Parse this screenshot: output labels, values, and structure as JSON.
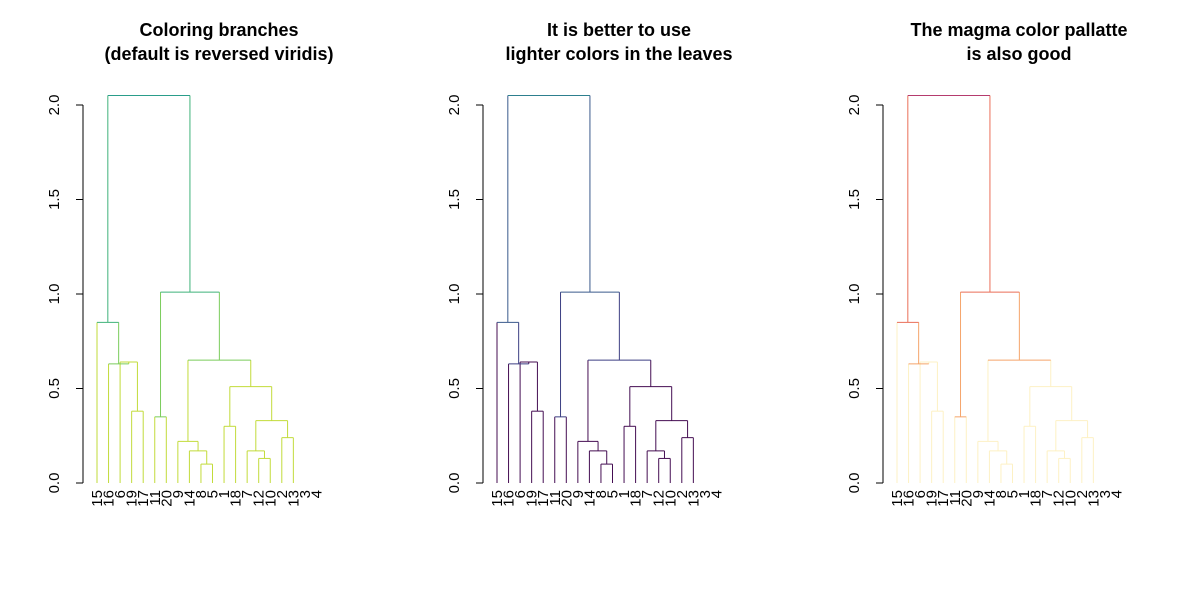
{
  "chart_data": [
    {
      "type": "dendrogram",
      "title_lines": [
        "Coloring branches",
        "(default is reversed viridis)"
      ],
      "palette": "reversed viridis",
      "ylim": [
        0,
        2
      ],
      "y_ticks": [
        "0.0",
        "0.5",
        "1.0",
        "1.5",
        "2.0"
      ],
      "y_tick_values": [
        0,
        0.5,
        1.0,
        1.5,
        2.0
      ],
      "leaf_labels": [
        "15",
        "16",
        "6",
        "19",
        "17",
        "11",
        "20",
        "9",
        "14",
        "8",
        "5",
        "1",
        "18",
        "7",
        "12",
        "10",
        "2",
        "13",
        "3",
        "4"
      ],
      "merge_heights": [
        0.1,
        0.13,
        0.17,
        0.17,
        0.22,
        0.24,
        0.3,
        0.33,
        0.33,
        0.33,
        0.35,
        0.38,
        0.51,
        0.55,
        0.63,
        0.65,
        0.85,
        1.01,
        2.05
      ],
      "branch_colors": {
        "root": "#2a9d8a",
        "level1": "#3fb27a",
        "level2": "#7acc5b",
        "leaves": "#c2db3a"
      }
    },
    {
      "type": "dendrogram",
      "title_lines": [
        "It is better to use",
        "lighter colors in the leaves"
      ],
      "palette": "viridis",
      "ylim": [
        0,
        2
      ],
      "y_ticks": [
        "0.0",
        "0.5",
        "1.0",
        "1.5",
        "2.0"
      ],
      "y_tick_values": [
        0,
        0.5,
        1.0,
        1.5,
        2.0
      ],
      "leaf_labels": [
        "15",
        "16",
        "6",
        "19",
        "17",
        "11",
        "20",
        "9",
        "14",
        "8",
        "5",
        "1",
        "18",
        "7",
        "12",
        "10",
        "2",
        "13",
        "3",
        "4"
      ],
      "merge_heights": [
        0.1,
        0.13,
        0.17,
        0.17,
        0.22,
        0.24,
        0.3,
        0.33,
        0.33,
        0.33,
        0.35,
        0.38,
        0.51,
        0.55,
        0.63,
        0.65,
        0.85,
        1.01,
        2.05
      ],
      "branch_colors": {
        "root": "#2d7f8e",
        "level1": "#3a5a8c",
        "level2": "#3c3f83",
        "leaves": "#440d52"
      }
    },
    {
      "type": "dendrogram",
      "title_lines": [
        "The magma color pallatte",
        "is also good"
      ],
      "palette": "magma",
      "ylim": [
        0,
        2
      ],
      "y_ticks": [
        "0.0",
        "0.5",
        "1.0",
        "1.5",
        "2.0"
      ],
      "y_tick_values": [
        0,
        0.5,
        1.0,
        1.5,
        2.0
      ],
      "leaf_labels": [
        "15",
        "16",
        "6",
        "19",
        "17",
        "11",
        "20",
        "9",
        "14",
        "8",
        "5",
        "1",
        "18",
        "7",
        "12",
        "10",
        "2",
        "13",
        "3",
        "4"
      ],
      "merge_heights": [
        0.1,
        0.13,
        0.17,
        0.17,
        0.22,
        0.24,
        0.3,
        0.33,
        0.33,
        0.33,
        0.35,
        0.38,
        0.51,
        0.55,
        0.63,
        0.65,
        0.85,
        1.01,
        2.05
      ],
      "branch_colors": {
        "root": "#b53b6e",
        "level1": "#ea6e58",
        "level2": "#f5a46a",
        "leaves": "#fdf1c4"
      }
    }
  ]
}
